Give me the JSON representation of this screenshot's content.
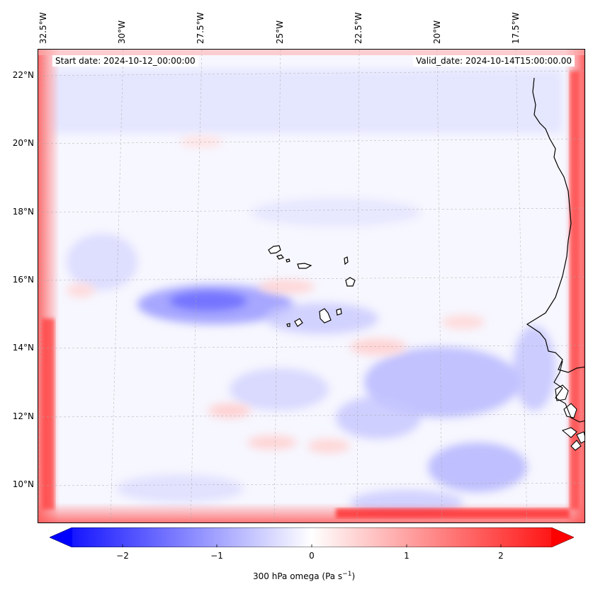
{
  "map": {
    "start_date": "Start date: 2024-10-12_00:00:00",
    "valid_date": "Valid_date: 2024-10-14T15:00:00.00",
    "lon_labels": [
      "32.5°W",
      "30°W",
      "27.5°W",
      "25°W",
      "22.5°W",
      "20°W",
      "17.5°W"
    ],
    "lat_labels": [
      "22°N",
      "20°N",
      "18°N",
      "16°N",
      "14°N",
      "12°N",
      "10°N"
    ]
  },
  "colorbar": {
    "ticks": [
      "−2",
      "−1",
      "0",
      "1",
      "2"
    ],
    "label": "300 hPa omega (Pa s",
    "label_sup": "−1",
    "label_end": ")",
    "colors": {
      "neg": "#0000ff",
      "zero": "#ffffff",
      "pos": "#ff0000"
    }
  }
}
